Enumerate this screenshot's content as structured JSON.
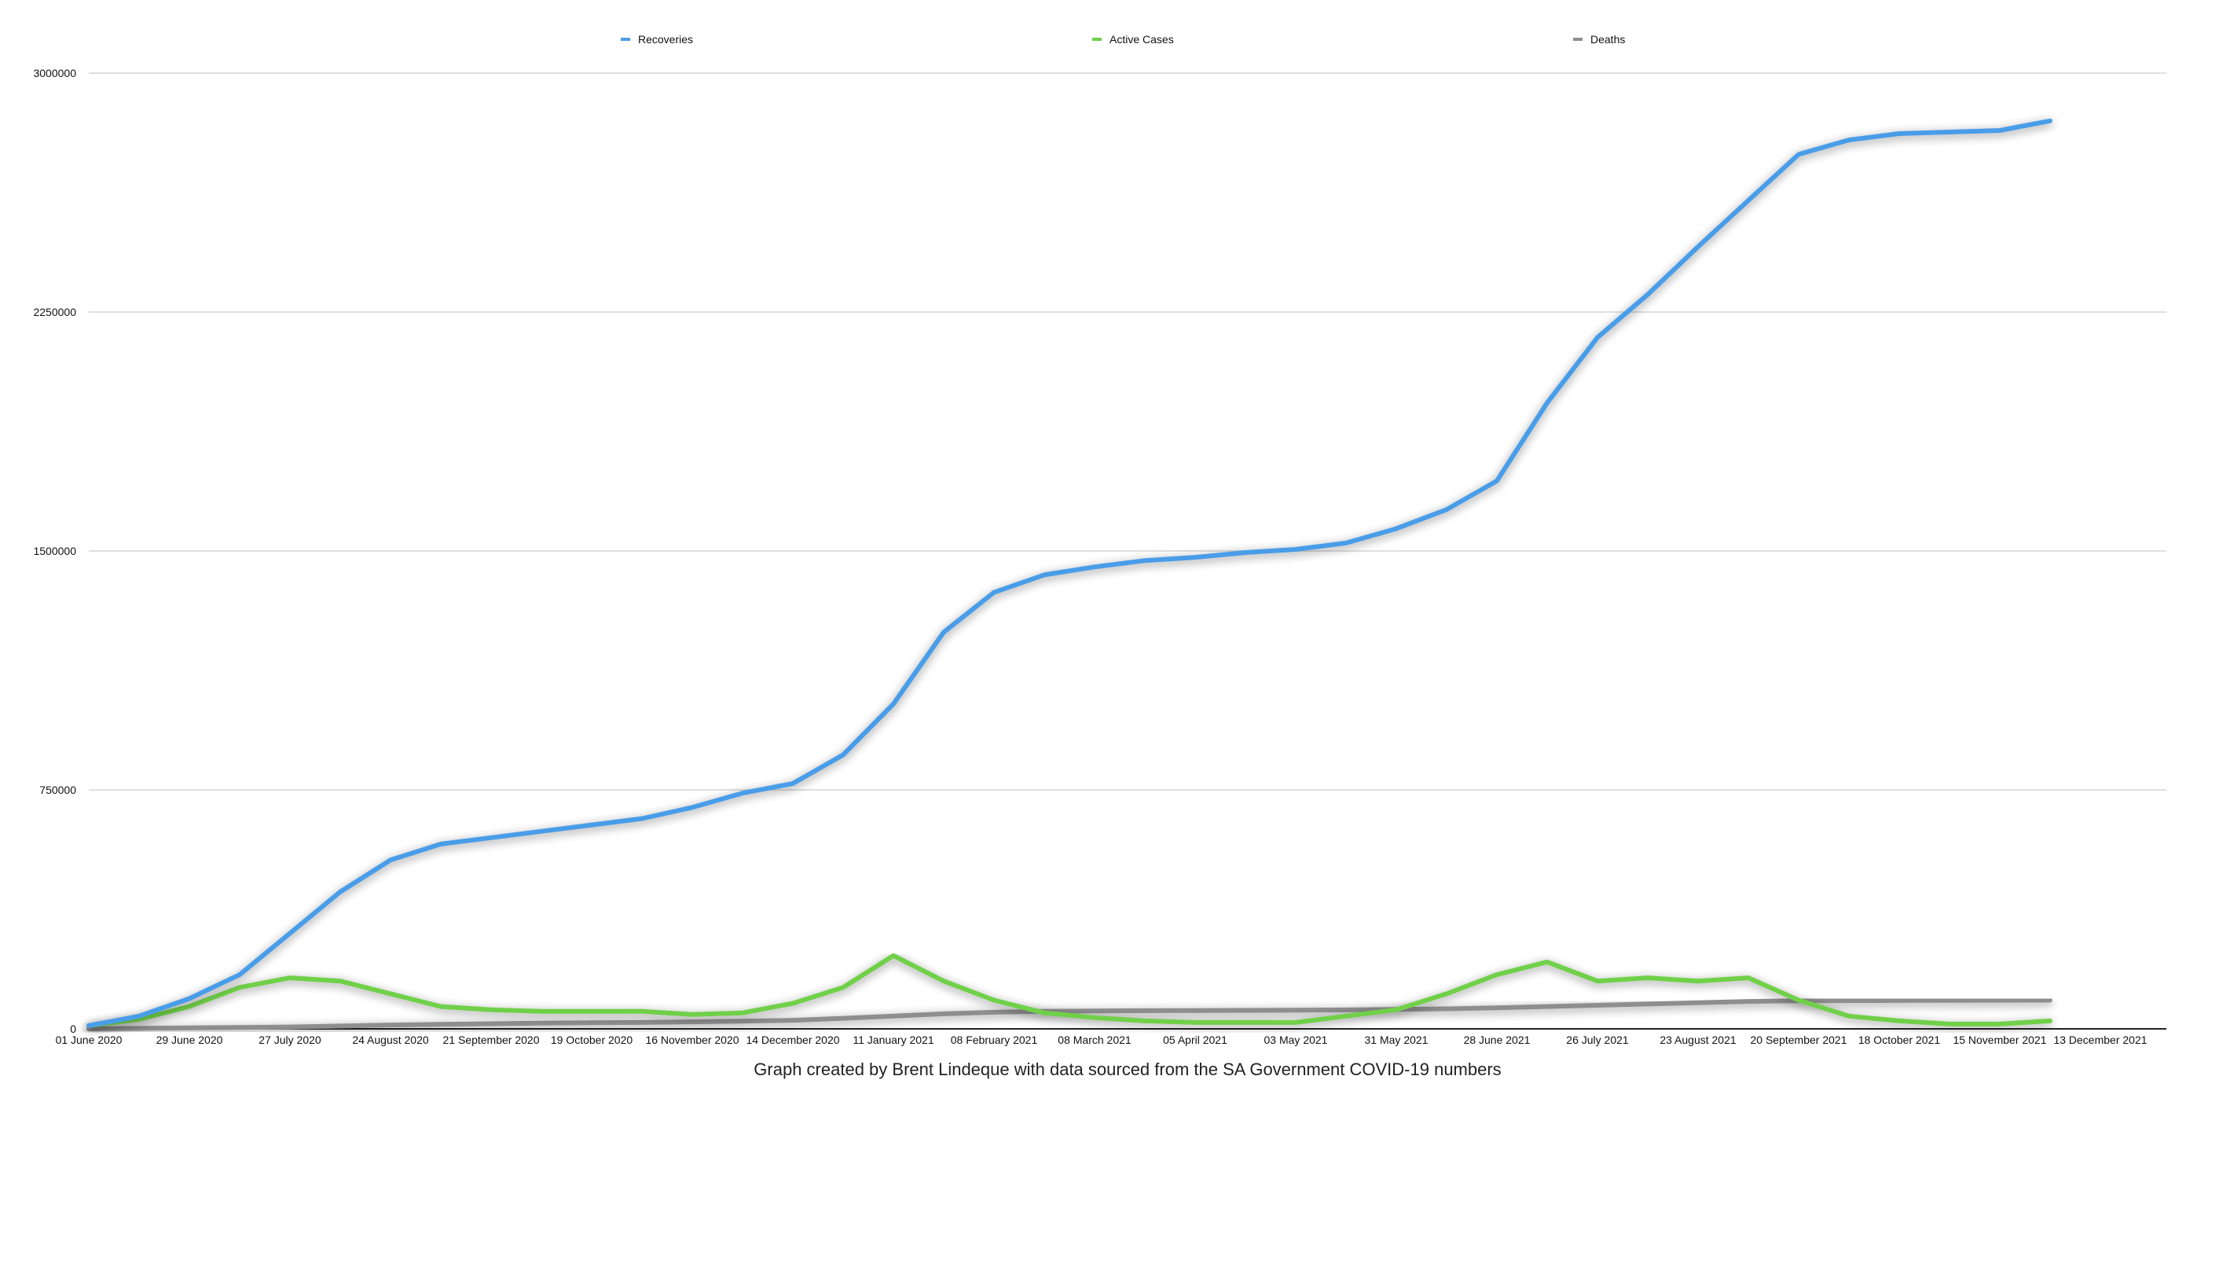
{
  "chart_data": {
    "type": "line",
    "title": "",
    "caption": "Graph created by Brent Lindeque with data sourced from the SA Government COVID-19 numbers",
    "xlabel": "",
    "ylabel": "",
    "ylim": [
      0,
      3000000
    ],
    "yticks": [
      "0",
      "750000",
      "1500000",
      "2250000",
      "3000000"
    ],
    "ytick_values": [
      0,
      750000,
      1500000,
      2250000,
      3000000
    ],
    "xticks": [
      "01 June 2020",
      "29 June 2020",
      "27 July 2020",
      "24 August 2020",
      "21 September 2020",
      "19 October 2020",
      "16 November 2020",
      "14 December 2020",
      "11 January 2021",
      "08 February 2021",
      "08 March 2021",
      "05 April 2021",
      "03 May 2021",
      "31 May 2021",
      "28 June 2021",
      "26 July 2021",
      "23 August 2021",
      "20 September 2021",
      "18 October 2021",
      "15 November 2021",
      "13 December 2021"
    ],
    "xtick_step_days": 28,
    "xlim_days": [
      0,
      560
    ],
    "grid": true,
    "legend_position": "top",
    "x_days": [
      0,
      14,
      28,
      42,
      56,
      70,
      84,
      98,
      112,
      126,
      140,
      154,
      168,
      182,
      196,
      210,
      224,
      238,
      252,
      266,
      280,
      294,
      308,
      322,
      336,
      350,
      364,
      378,
      392,
      406,
      420,
      434,
      448,
      462,
      476,
      490,
      504,
      518,
      532,
      546
    ],
    "series": [
      {
        "name": "Recoveries",
        "color": "#4a9de8",
        "values": [
          10000,
          40000,
          95000,
          170000,
          300000,
          430000,
          530000,
          580000,
          600000,
          620000,
          640000,
          660000,
          695000,
          740000,
          770000,
          860000,
          1020000,
          1245000,
          1370000,
          1425000,
          1450000,
          1470000,
          1480000,
          1495000,
          1505000,
          1525000,
          1570000,
          1630000,
          1720000,
          1965000,
          2170000,
          2305000,
          2455000,
          2600000,
          2745000,
          2790000,
          2810000,
          2815000,
          2820000,
          2850000
        ]
      },
      {
        "name": "Active Cases",
        "color": "#6fd04a",
        "values": [
          10000,
          30000,
          70000,
          130000,
          160000,
          150000,
          110000,
          70000,
          60000,
          55000,
          55000,
          55000,
          45000,
          50000,
          80000,
          130000,
          230000,
          150000,
          90000,
          50000,
          35000,
          25000,
          20000,
          20000,
          20000,
          40000,
          60000,
          110000,
          170000,
          210000,
          150000,
          160000,
          150000,
          160000,
          90000,
          40000,
          25000,
          15000,
          15000,
          25000
        ]
      },
      {
        "name": "Deaths",
        "color": "#8e8e8e",
        "values": [
          100,
          1500,
          3000,
          4500,
          6000,
          9000,
          12000,
          14000,
          16000,
          18000,
          19000,
          20000,
          22000,
          24000,
          27000,
          33000,
          40000,
          47000,
          52000,
          55000,
          56000,
          57000,
          57500,
          58000,
          58500,
          59500,
          61000,
          63000,
          66000,
          70000,
          74000,
          78000,
          82000,
          86000,
          88000,
          88500,
          89000,
          89500,
          89800,
          90000
        ]
      }
    ]
  }
}
